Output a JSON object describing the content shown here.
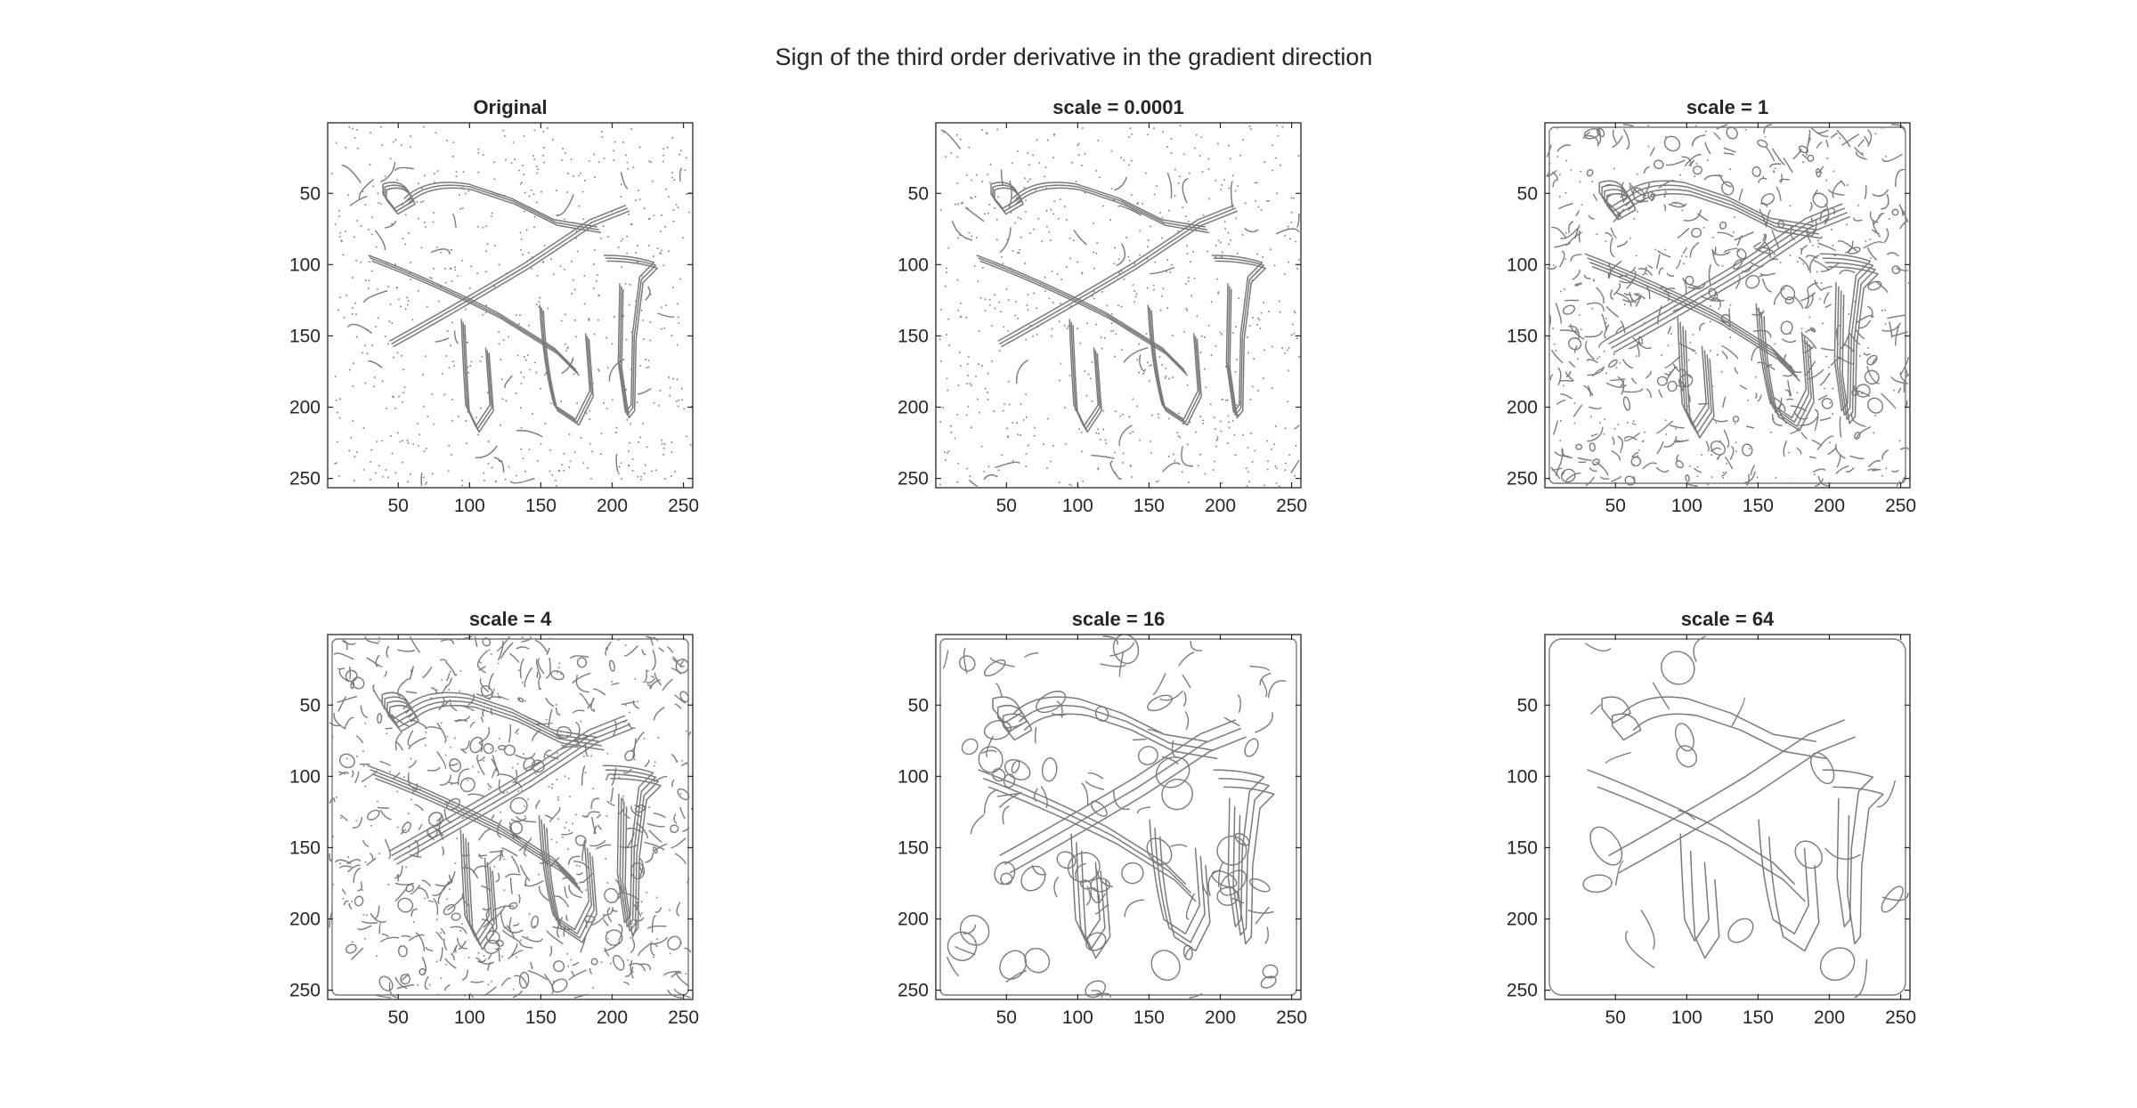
{
  "figure": {
    "title": "Sign of the third order derivative in the gradient direction"
  },
  "axes_common": {
    "xlim": [
      0.5,
      256.5
    ],
    "ylim": [
      0.5,
      256.5
    ],
    "y_direction": "reversed",
    "xticks": [
      50,
      100,
      150,
      200,
      250
    ],
    "yticks": [
      50,
      100,
      150,
      200,
      250
    ],
    "xtick_labels": [
      "50",
      "100",
      "150",
      "200",
      "250"
    ],
    "ytick_labels": [
      "50",
      "100",
      "150",
      "200",
      "250"
    ],
    "grid": false
  },
  "panels": [
    {
      "title": "Original",
      "scale": null,
      "density": "noisy"
    },
    {
      "title": "scale = 0.0001",
      "scale": 0.0001,
      "density": "noisy"
    },
    {
      "title": "scale = 1",
      "scale": 1,
      "density": "dense"
    },
    {
      "title": "scale = 4",
      "scale": 4,
      "density": "dense"
    },
    {
      "title": "scale = 16",
      "scale": 16,
      "density": "medium"
    },
    {
      "title": "scale = 64",
      "scale": 64,
      "density": "sparse"
    }
  ],
  "colors": {
    "background": "#ffffff",
    "contour": "#7a7a7a",
    "axis": "#262626",
    "text": "#000000"
  }
}
